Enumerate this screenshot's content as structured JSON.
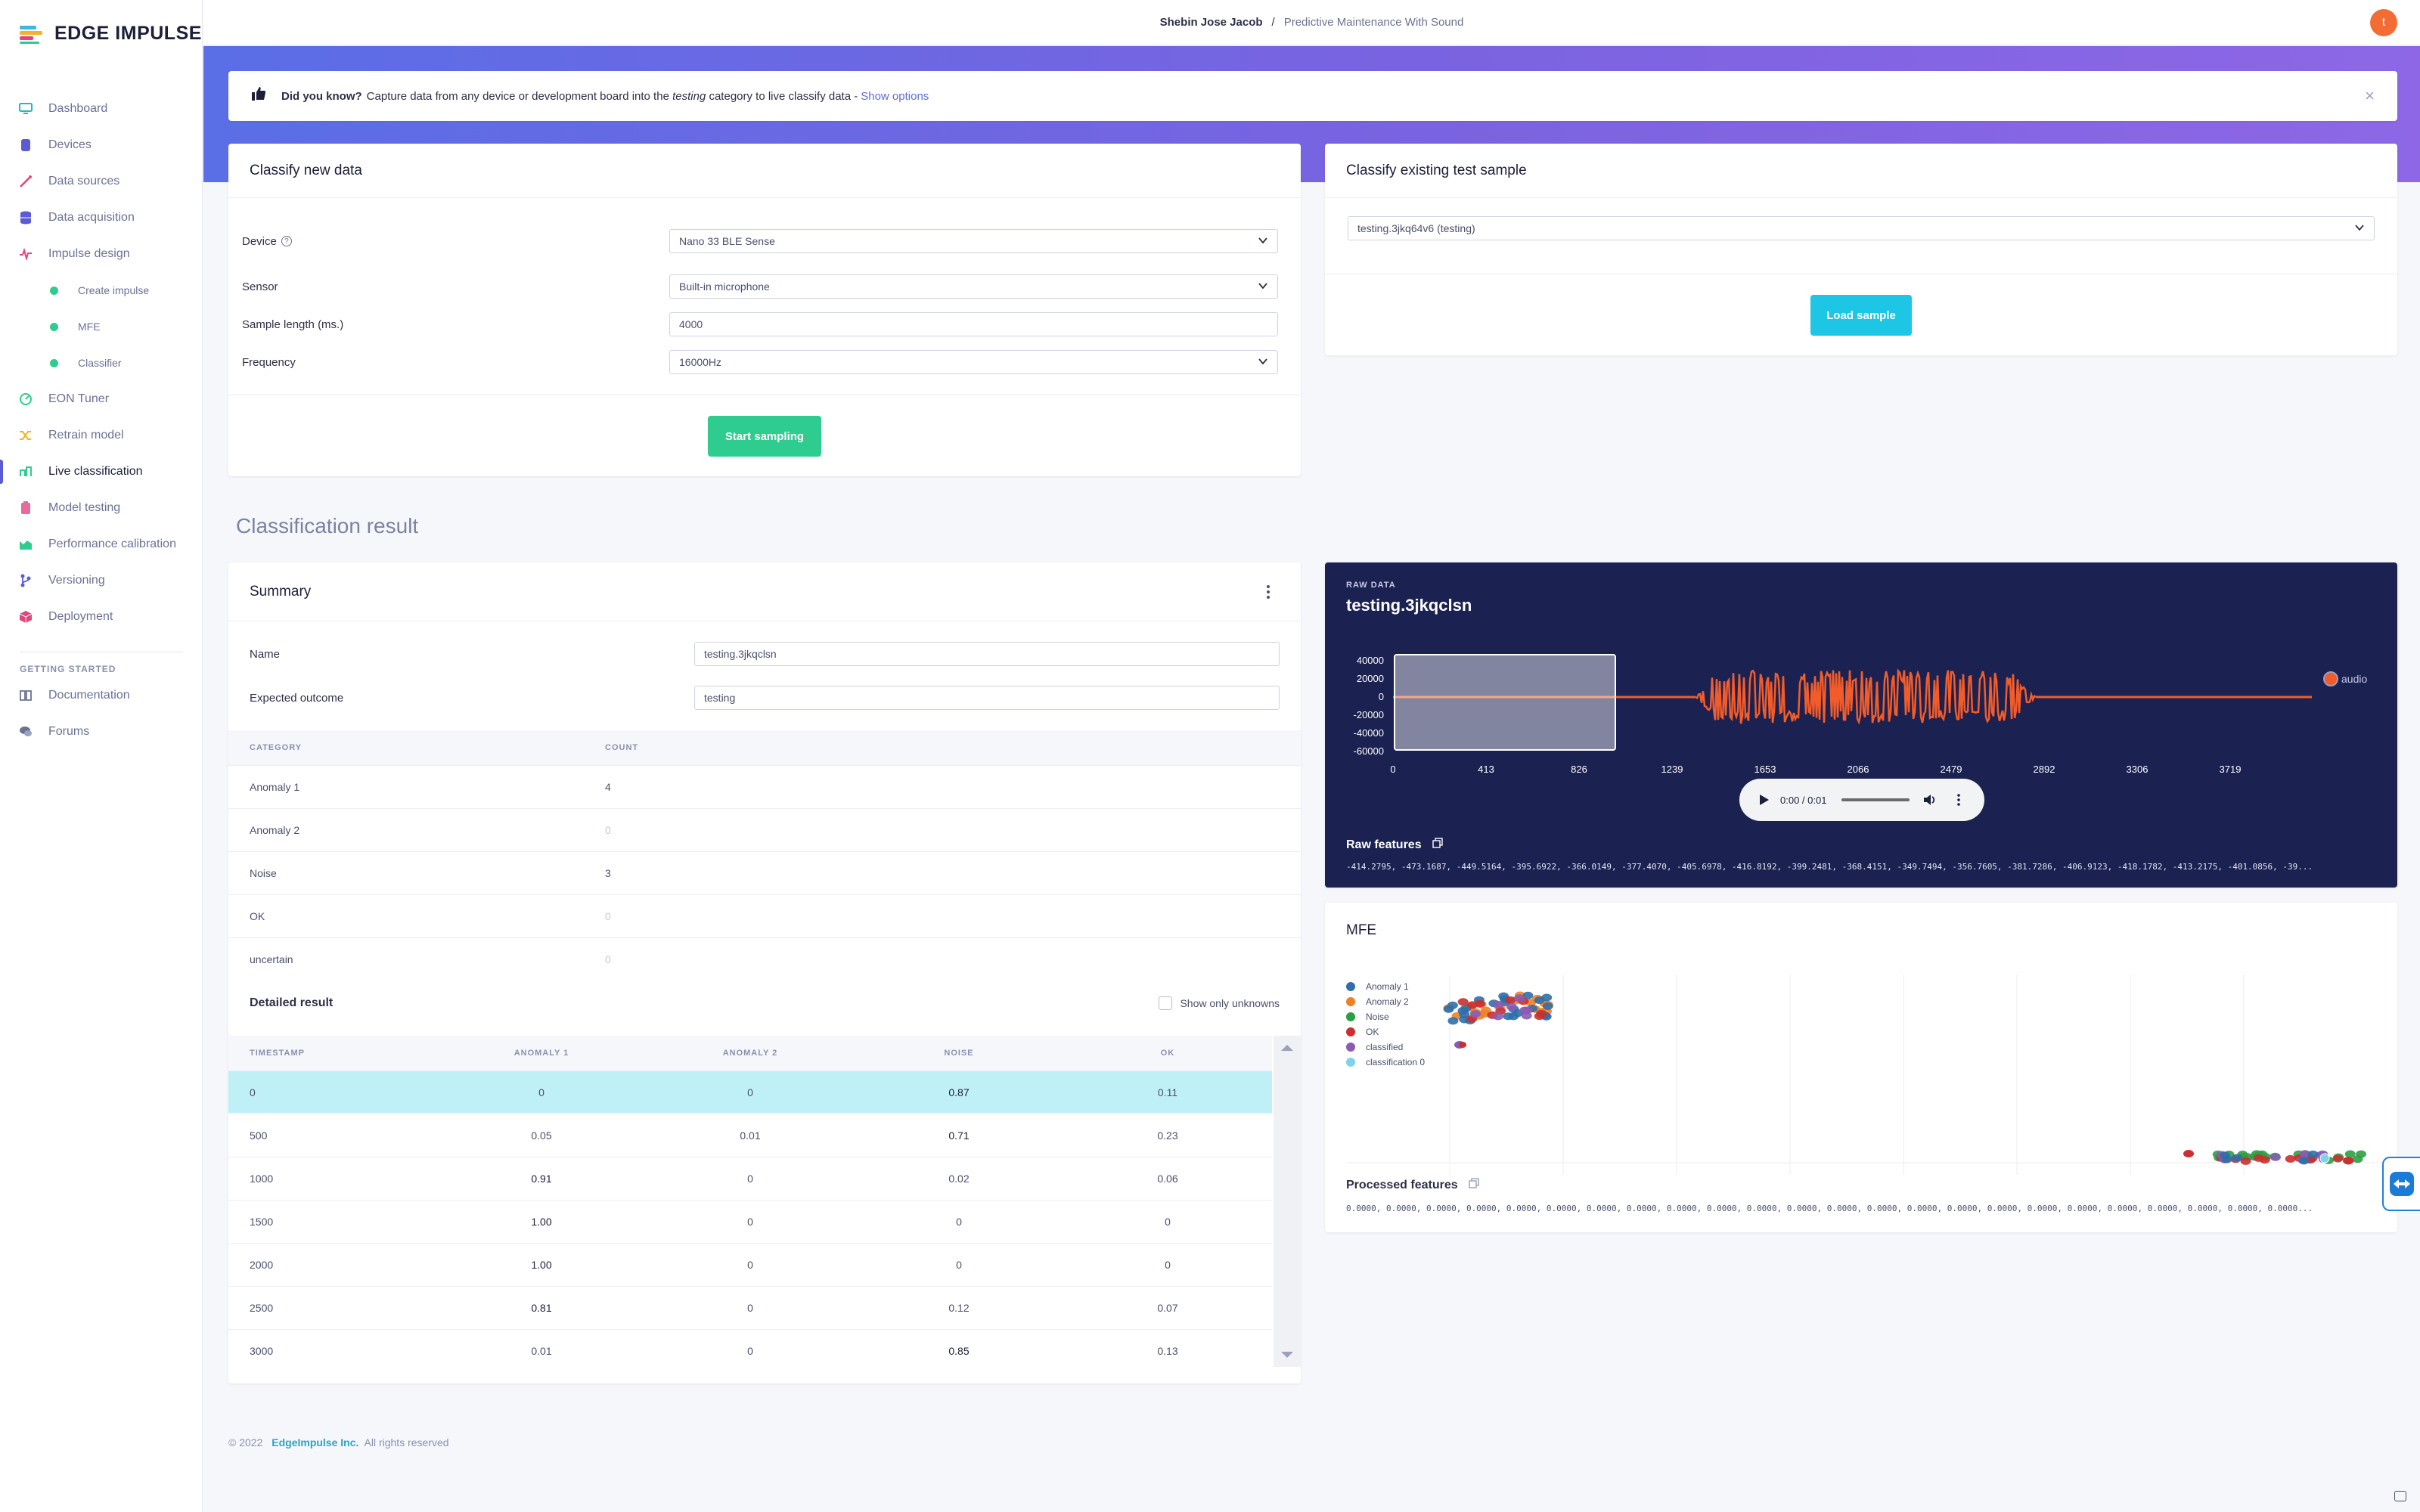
{
  "brand": {
    "name": "EDGE IMPULSE"
  },
  "topbar": {
    "user": "Shebin Jose Jacob",
    "separator": "/",
    "project": "Predictive Maintenance With Sound",
    "avatar_letter": "t"
  },
  "sidebar": {
    "items": [
      {
        "label": "Dashboard",
        "icon": "monitor-icon",
        "color": "#2bb3c9"
      },
      {
        "label": "Devices",
        "icon": "device-icon",
        "color": "#5b5bd6"
      },
      {
        "label": "Data sources",
        "icon": "wand-icon",
        "color": "#e0457b"
      },
      {
        "label": "Data acquisition",
        "icon": "database-icon",
        "color": "#5b5bd6"
      },
      {
        "label": "Impulse design",
        "icon": "pulse-icon",
        "color": "#e0457b"
      },
      {
        "label": "Create impulse",
        "sub": true
      },
      {
        "label": "MFE",
        "sub": true
      },
      {
        "label": "Classifier",
        "sub": true
      },
      {
        "label": "EON Tuner",
        "icon": "tuner-icon",
        "color": "#2ecc8f"
      },
      {
        "label": "Retrain model",
        "icon": "shuffle-icon",
        "color": "#f2b32b"
      },
      {
        "label": "Live classification",
        "icon": "live-icon",
        "color": "#2ecc8f",
        "active": true
      },
      {
        "label": "Model testing",
        "icon": "flask-icon",
        "color": "#e86a9a"
      },
      {
        "label": "Performance calibration",
        "icon": "chart-icon",
        "color": "#2ecc8f"
      },
      {
        "label": "Versioning",
        "icon": "branch-icon",
        "color": "#5b5bd6"
      },
      {
        "label": "Deployment",
        "icon": "box-icon",
        "color": "#e0457b"
      }
    ],
    "section": "GETTING STARTED",
    "getting_started": [
      {
        "label": "Documentation",
        "icon": "book-icon"
      },
      {
        "label": "Forums",
        "icon": "chat-icon"
      }
    ]
  },
  "tip": {
    "bold": "Did you know?",
    "text_before": "Capture data from any device or development board into the",
    "italic": "testing",
    "text_after": "category to live classify data -",
    "link": "Show options",
    "close": "×"
  },
  "classify_new": {
    "title": "Classify new data",
    "device_label": "Device",
    "device_value": "Nano 33 BLE Sense",
    "sensor_label": "Sensor",
    "sensor_value": "Built-in microphone",
    "length_label": "Sample length (ms.)",
    "length_value": "4000",
    "frequency_label": "Frequency",
    "frequency_value": "16000Hz",
    "button": "Start sampling"
  },
  "classify_existing": {
    "title": "Classify existing test sample",
    "sample_value": "testing.3jkq64v6 (testing)",
    "button": "Load sample"
  },
  "result": {
    "section_title": "Classification result",
    "summary_title": "Summary",
    "name_label": "Name",
    "name_value": "testing.3jkqclsn",
    "expected_label": "Expected outcome",
    "expected_value": "testing",
    "count_headers": [
      "CATEGORY",
      "COUNT"
    ],
    "counts": [
      {
        "category": "Anomaly 1",
        "count": "4"
      },
      {
        "category": "Anomaly 2",
        "count": "0"
      },
      {
        "category": "Noise",
        "count": "3"
      },
      {
        "category": "OK",
        "count": "0"
      },
      {
        "category": "uncertain",
        "count": "0"
      }
    ],
    "detailed_title": "Detailed result",
    "unknowns_label": "Show only unknowns",
    "detail_headers": [
      "TIMESTAMP",
      "ANOMALY 1",
      "ANOMALY 2",
      "NOISE",
      "OK"
    ],
    "detail_rows": [
      [
        "0",
        "0",
        "0",
        "0.87",
        "0.11"
      ],
      [
        "500",
        "0.05",
        "0.01",
        "0.71",
        "0.23"
      ],
      [
        "1000",
        "0.91",
        "0",
        "0.02",
        "0.06"
      ],
      [
        "1500",
        "1.00",
        "0",
        "0",
        "0"
      ],
      [
        "2000",
        "1.00",
        "0",
        "0",
        "0"
      ],
      [
        "2500",
        "0.81",
        "0",
        "0.12",
        "0.07"
      ],
      [
        "3000",
        "0.01",
        "0",
        "0.85",
        "0.13"
      ]
    ]
  },
  "raw_data": {
    "small_label": "RAW DATA",
    "sample_name": "testing.3jkqclsn",
    "legend": "audio",
    "y_ticks": [
      "40000",
      "20000",
      "0",
      "-20000",
      "-40000",
      "-60000"
    ],
    "x_ticks": [
      "0",
      "413",
      "826",
      "1239",
      "1653",
      "2066",
      "2479",
      "2892",
      "3306",
      "3719"
    ],
    "player_time": "0:00 / 0:01",
    "features_label": "Raw features",
    "features_values": "-414.2795, -473.1687, -449.5164, -395.6922, -366.0149, -377.4070, -405.6978, -416.8192, -399.2481, -368.4151, -349.7494, -356.7605, -381.7286, -406.9123, -418.1782, -413.2175, -401.0856, -39..."
  },
  "chart_data": {
    "type": "line",
    "series": [
      {
        "name": "audio"
      }
    ],
    "x_ticks": [
      "0",
      "413",
      "826",
      "1239",
      "1653",
      "2066",
      "2479",
      "2892",
      "3306",
      "3719"
    ],
    "y_ticks": [
      "40000",
      "20000",
      "0",
      "-20000",
      "-40000",
      "-60000"
    ],
    "ylim": [
      -60000,
      40000
    ],
    "colors": {
      "audio": "#f25c2a"
    }
  },
  "mfe": {
    "title": "MFE",
    "legend": [
      {
        "label": "Anomaly 1",
        "color": "#2f6fa8"
      },
      {
        "label": "Anomaly 2",
        "color": "#f07f25"
      },
      {
        "label": "Noise",
        "color": "#2e9e44"
      },
      {
        "label": "OK",
        "color": "#c9302f"
      },
      {
        "label": "classified",
        "color": "#8a5bb5"
      },
      {
        "label": "classification 0",
        "color": "#7dd3e8"
      }
    ],
    "features_label": "Processed features",
    "features_values": "0.0000, 0.0000, 0.0000, 0.0000, 0.0000, 0.0000, 0.0000, 0.0000, 0.0000, 0.0000, 0.0000, 0.0000, 0.0000, 0.0000, 0.0000, 0.0000, 0.0000, 0.0000, 0.0000, 0.0000, 0.0000, 0.0000, 0.0000, 0.0000..."
  },
  "footer": {
    "year": "© 2022",
    "company": "EdgeImpulse Inc.",
    "rights": "All rights reserved"
  }
}
